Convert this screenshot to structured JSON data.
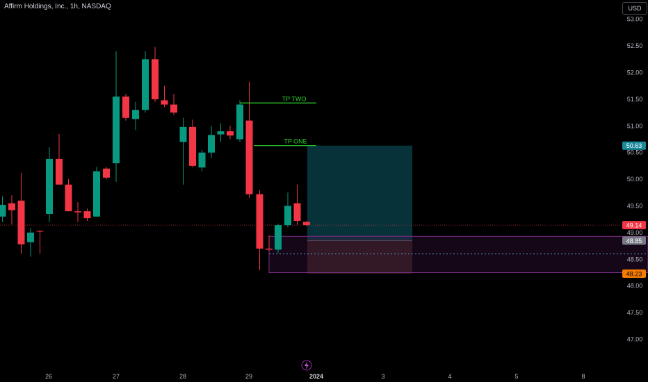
{
  "header": {
    "title": "Affirm Holdings, Inc., 1h, NASDAQ",
    "currency": "USD"
  },
  "colors": {
    "up": "#089981",
    "down": "#f23645",
    "grid_text": "#b2b5be",
    "background": "#000000",
    "target_zone": "#08323a",
    "stop_zone": "#2e1b14",
    "range_box": "#7b2d86",
    "tp_line": "#2bd62b"
  },
  "chart_data": {
    "type": "candlestick",
    "title": "Affirm Holdings, Inc., 1h, NASDAQ",
    "ylim": [
      46.85,
      53.1
    ],
    "y_ticks": [
      "53.00",
      "52.50",
      "52.00",
      "51.50",
      "51.00",
      "50.50",
      "50.00",
      "49.50",
      "49.00",
      "48.50",
      "48.00",
      "47.50",
      "47.00"
    ],
    "x_ticks": [
      "26",
      "27",
      "28",
      "29",
      "2024",
      "3",
      "4",
      "5",
      "8"
    ],
    "grid": false,
    "candles": [
      {
        "x": 3.5,
        "o": 49.3,
        "h": 49.68,
        "l": 49.2,
        "c": 49.52
      },
      {
        "x": 17.0,
        "o": 49.55,
        "h": 49.7,
        "l": 49.15,
        "c": 49.42
      },
      {
        "x": 30.5,
        "o": 49.6,
        "h": 50.12,
        "l": 48.6,
        "c": 48.78
      },
      {
        "x": 44.0,
        "o": 48.82,
        "h": 49.08,
        "l": 48.55,
        "c": 49.0
      },
      {
        "x": 57.5,
        "o": 49.03,
        "h": 49.05,
        "l": 48.6,
        "c": 49.02
      },
      {
        "x": 71.0,
        "o": 49.35,
        "h": 50.6,
        "l": 49.2,
        "c": 50.38
      },
      {
        "x": 85.0,
        "o": 50.38,
        "h": 50.85,
        "l": 49.9,
        "c": 49.9
      },
      {
        "x": 98.5,
        "o": 49.9,
        "h": 50.0,
        "l": 49.4,
        "c": 49.4
      },
      {
        "x": 112.0,
        "o": 49.4,
        "h": 49.57,
        "l": 49.2,
        "c": 49.38
      },
      {
        "x": 125.5,
        "o": 49.4,
        "h": 49.45,
        "l": 49.22,
        "c": 49.27
      },
      {
        "x": 139.0,
        "o": 49.3,
        "h": 50.23,
        "l": 49.3,
        "c": 50.15
      },
      {
        "x": 153.0,
        "o": 50.2,
        "h": 50.23,
        "l": 50.0,
        "c": 50.03
      },
      {
        "x": 167.0,
        "o": 50.3,
        "h": 52.4,
        "l": 49.95,
        "c": 51.55
      },
      {
        "x": 181.0,
        "o": 51.55,
        "h": 51.6,
        "l": 51.1,
        "c": 51.15
      },
      {
        "x": 195.0,
        "o": 51.13,
        "h": 51.45,
        "l": 50.92,
        "c": 51.3
      },
      {
        "x": 209.0,
        "o": 51.3,
        "h": 52.4,
        "l": 51.25,
        "c": 52.25
      },
      {
        "x": 223.0,
        "o": 52.25,
        "h": 52.48,
        "l": 51.45,
        "c": 51.5
      },
      {
        "x": 236.5,
        "o": 51.48,
        "h": 51.75,
        "l": 51.35,
        "c": 51.4
      },
      {
        "x": 250.0,
        "o": 51.4,
        "h": 51.6,
        "l": 51.2,
        "c": 51.25
      },
      {
        "x": 263.5,
        "o": 50.7,
        "h": 51.15,
        "l": 49.9,
        "c": 50.98
      },
      {
        "x": 277.0,
        "o": 50.98,
        "h": 51.12,
        "l": 50.22,
        "c": 50.25
      },
      {
        "x": 290.5,
        "o": 50.22,
        "h": 50.55,
        "l": 50.15,
        "c": 50.5
      },
      {
        "x": 304.0,
        "o": 50.5,
        "h": 51.0,
        "l": 50.4,
        "c": 50.83
      },
      {
        "x": 317.5,
        "o": 50.84,
        "h": 51.05,
        "l": 50.7,
        "c": 50.9
      },
      {
        "x": 331.0,
        "o": 50.9,
        "h": 51.0,
        "l": 50.75,
        "c": 50.82
      },
      {
        "x": 345.0,
        "o": 50.75,
        "h": 51.48,
        "l": 50.7,
        "c": 51.4
      },
      {
        "x": 358.5,
        "o": 51.1,
        "h": 51.83,
        "l": 49.65,
        "c": 49.72
      },
      {
        "x": 373.5,
        "o": 49.72,
        "h": 49.8,
        "l": 48.3,
        "c": 48.7
      },
      {
        "x": 387.0,
        "o": 48.7,
        "h": 48.95,
        "l": 48.65,
        "c": 48.68
      },
      {
        "x": 400.0,
        "o": 48.68,
        "h": 49.17,
        "l": 48.62,
        "c": 49.14
      },
      {
        "x": 414.0,
        "o": 49.14,
        "h": 49.75,
        "l": 49.1,
        "c": 49.5
      },
      {
        "x": 427.5,
        "o": 49.55,
        "h": 49.9,
        "l": 49.15,
        "c": 49.22
      },
      {
        "x": 441.0,
        "o": 49.2,
        "h": 49.22,
        "l": 49.12,
        "c": 49.14
      }
    ],
    "annotations": [
      {
        "label": "TP TWO",
        "price": 51.43
      },
      {
        "label": "TP ONE",
        "price": 50.63
      }
    ],
    "position": {
      "entry": 48.85,
      "target": 50.63,
      "stop": 48.23
    },
    "range_box": {
      "top": 48.93,
      "bottom": 48.25
    },
    "price_labels": {
      "target_label": "50.63",
      "last_price": "49.14",
      "entry_label": "48.85",
      "stop_label": "48.23"
    },
    "last_price": 49.14
  }
}
